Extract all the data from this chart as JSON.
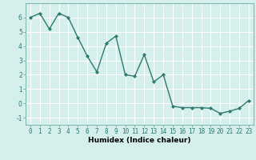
{
  "x": [
    0,
    1,
    2,
    3,
    4,
    5,
    6,
    7,
    8,
    9,
    10,
    11,
    12,
    13,
    14,
    15,
    16,
    17,
    18,
    19,
    20,
    21,
    22,
    23
  ],
  "y": [
    6.0,
    6.3,
    5.2,
    6.3,
    6.0,
    4.6,
    3.3,
    2.2,
    4.2,
    4.7,
    2.0,
    1.9,
    3.4,
    1.5,
    2.0,
    -0.2,
    -0.3,
    -0.3,
    -0.3,
    -0.35,
    -0.7,
    -0.55,
    -0.35,
    0.2
  ],
  "title": "",
  "xlabel": "Humidex (Indice chaleur)",
  "ylabel": "",
  "xlim": [
    -0.5,
    23.5
  ],
  "ylim": [
    -1.5,
    7.0
  ],
  "yticks": [
    -1,
    0,
    1,
    2,
    3,
    4,
    5,
    6
  ],
  "xticks": [
    0,
    1,
    2,
    3,
    4,
    5,
    6,
    7,
    8,
    9,
    10,
    11,
    12,
    13,
    14,
    15,
    16,
    17,
    18,
    19,
    20,
    21,
    22,
    23
  ],
  "line_color": "#2d7a6e",
  "marker": "D",
  "marker_size": 2.0,
  "bg_color": "#d4efec",
  "grid_color": "#ffffff",
  "line_width": 1.0,
  "tick_fontsize": 5.5,
  "xlabel_fontsize": 6.5
}
